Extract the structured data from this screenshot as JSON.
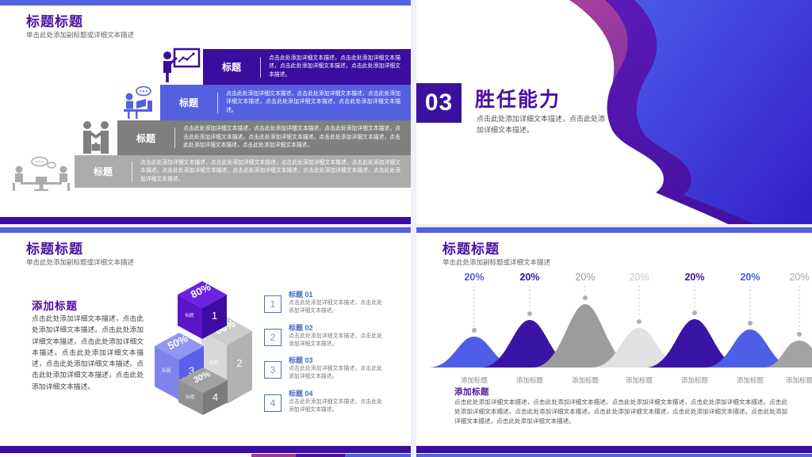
{
  "colors": {
    "accent_purple": "#4a10a2",
    "top_bar_blue": "#5562de",
    "bottom_bar_purple": "#3b0da1",
    "step_colors": [
      "#3a0d9e",
      "#5560e0",
      "#7f7f7f",
      "#ababab"
    ],
    "list_accent_blue": "#3f6fc0",
    "list_box_border": "#4472c4",
    "wave_magenta": "#a8409a",
    "wave_violet": "#4c13ad",
    "wave_blue": "#4b5ae9"
  },
  "slides": {
    "steps": {
      "title": "标题标题",
      "subtitle": "单击此处添加副标题或详细文本描述",
      "items": [
        {
          "label": "标题",
          "icon": "presenter-board-icon",
          "desc": "点击此处添加详细文本描述，点击此处添加详细文本描述，点击此处添加详细文本描述，点击此处添加详细文本描述。"
        },
        {
          "label": "标题",
          "icon": "workstation-icon",
          "desc": "点击此处添加详细文本描述，点击此处添加详细文本描述，点击此处添加详细文本描述，点击此处添加详细文本描述，点击此处添加详细文本描述。"
        },
        {
          "label": "标题",
          "icon": "handshake-icon",
          "desc": "点击此处添加详细文本描述，点击此处添加详细文本描述，点击此处添加详细文本描述，点击此处添加详细文本描述。点击此处添加详细文本描述，点击此处添加详细文本描述，点击此处添加详细文本描述，点击此处添加详细文本描述。"
        },
        {
          "label": "标题",
          "icon": "meeting-icon",
          "desc": "点击此处添加详细文本描述，点击此处添加详细文本描述，点击此处添加详细文本描述，点击此处添加详细文本描述。点击此处添加详细文本描述，点击此处添加详细文本描述，点击此处添加详细文本描述，点击此处添加详细文本描述。"
        }
      ]
    },
    "section": {
      "number": "03",
      "title": "胜任能力",
      "desc": "点击此处添加详细文本描述，点击此处添加详细文本描述。"
    },
    "cubes": {
      "title": "标题标题",
      "subtitle": "单击此处添加副标题或详细文本描述",
      "heading": "添加标题",
      "paragraph": "点击此处添加详细文本描述，点击此处添加详细文本描述。点击此处添加详细文本描述，点击此处添加详细文本描述。点击此处添加详细文本描述，点击此处添加详细文本描述。点击此处添加详细文本描述，点击此处添加详细文本描述。",
      "items": [
        {
          "num": "1",
          "heading": "标题 01",
          "desc": "点击此处添加详细文本描述，点击此处添加详细文本描述。"
        },
        {
          "num": "2",
          "heading": "标题 02",
          "desc": "点击此处添加详细文本描述，点击此处添加详细文本描述。"
        },
        {
          "num": "3",
          "heading": "标题 03",
          "desc": "点击此处添加详细文本描述，点击此处添加详细文本描述。"
        },
        {
          "num": "4",
          "heading": "标题 04",
          "desc": "点击此处添加详细文本描述，点击此处添加详细文本描述。"
        }
      ]
    },
    "peaks": {
      "title": "标题标题",
      "subtitle": "单击此处添加副标题或详细文本描述",
      "heading": "添加标题",
      "paragraph": "点击此处添加详细文本描述，点击此处添加详细文本描述。点击此处添加详细文本描述，点击此处添加详细文本描述。点击此处添加详细文本描述，点击此处添加详细文本描述。点击此处添加详细文本描述，点击此处添加详细文本描述。点击此处添加详细文本描述，点击此处添加详细文本描述。"
    }
  },
  "chart_data": [
    {
      "type": "bar",
      "variant": "3d-cubes",
      "title": "",
      "categories": [
        "1",
        "2",
        "3",
        "4"
      ],
      "values": [
        80,
        60,
        50,
        30
      ],
      "value_labels": [
        "80%",
        "60%",
        "50%",
        "30%"
      ],
      "bar_face_label": "标题",
      "colors": [
        {
          "top": "#6d22e0",
          "left": "#5a16c8",
          "right": "#3c0da0"
        },
        {
          "top": "#cccccc",
          "left": "#d8d8d8",
          "right": "#b2b2b2"
        },
        {
          "top": "#9096f2",
          "left": "#7e84ee",
          "right": "#5a60ea"
        },
        {
          "top": "#a2a2a2",
          "left": "#909090",
          "right": "#7b7b7b"
        }
      ]
    },
    {
      "type": "area",
      "variant": "peaks",
      "categories": [
        "添加标题",
        "添加标题",
        "添加标题",
        "添加标题",
        "添加标题",
        "添加标题",
        "添加标题"
      ],
      "values": [
        20,
        20,
        20,
        20,
        20,
        20,
        20
      ],
      "value_labels": [
        "20%",
        "20%",
        "20%",
        "20%",
        "20%",
        "20%",
        "20%"
      ],
      "relative_heights": [
        39,
        60,
        80,
        50,
        61,
        48,
        34
      ],
      "colors": [
        "#4d5fe6",
        "#3a14a4",
        "#9c9c9c",
        "#e2e2e4",
        "#3a14a4",
        "#4d5fe6",
        "#a3a3a3"
      ],
      "label_colors": [
        "#4a5ce0",
        "#3a14a0",
        "#9a9a9a",
        "#c6c6ca",
        "#3a14a0",
        "#4a5ce0",
        "#a8a8a8"
      ],
      "label_bold": [
        true,
        true,
        false,
        false,
        true,
        true,
        false
      ]
    }
  ]
}
